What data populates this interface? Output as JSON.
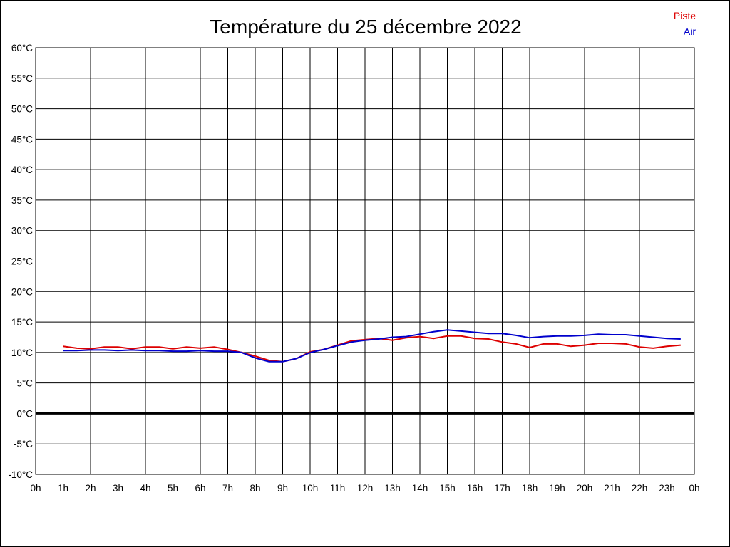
{
  "chart_data": {
    "type": "line",
    "title": "Température du 25 décembre 2022",
    "xlabel": "",
    "ylabel": "",
    "grid": true,
    "legend_position": "top-right",
    "xlim": [
      0,
      24
    ],
    "ylim": [
      -10,
      60
    ],
    "x_ticks": [
      0,
      1,
      2,
      3,
      4,
      5,
      6,
      7,
      8,
      9,
      10,
      11,
      12,
      13,
      14,
      15,
      16,
      17,
      18,
      19,
      20,
      21,
      22,
      23,
      24
    ],
    "x_tick_labels": [
      "0h",
      "1h",
      "2h",
      "3h",
      "4h",
      "5h",
      "6h",
      "7h",
      "8h",
      "9h",
      "10h",
      "11h",
      "12h",
      "13h",
      "14h",
      "15h",
      "16h",
      "17h",
      "18h",
      "19h",
      "20h",
      "21h",
      "22h",
      "23h",
      "0h"
    ],
    "y_ticks": [
      -10,
      -5,
      0,
      5,
      10,
      15,
      20,
      25,
      30,
      35,
      40,
      45,
      50,
      55,
      60
    ],
    "y_tick_labels": [
      "-10°C",
      "-5°C",
      "0°C",
      "5°C",
      "10°C",
      "15°C",
      "20°C",
      "25°C",
      "30°C",
      "35°C",
      "40°C",
      "45°C",
      "50°C",
      "55°C",
      "60°C"
    ],
    "x": [
      1,
      1.5,
      2,
      2.5,
      3,
      3.5,
      4,
      4.5,
      5,
      5.5,
      6,
      6.5,
      7,
      7.5,
      8,
      8.5,
      9,
      9.5,
      10,
      10.5,
      11,
      11.5,
      12,
      12.5,
      13,
      13.5,
      14,
      14.5,
      15,
      15.5,
      16,
      16.5,
      17,
      17.5,
      18,
      18.5,
      19,
      19.5,
      20,
      20.5,
      21,
      21.5,
      22,
      22.5,
      23,
      23.5
    ],
    "series": [
      {
        "name": "Piste",
        "color": "#dd0000",
        "values": [
          11.0,
          10.7,
          10.6,
          10.9,
          10.9,
          10.6,
          10.9,
          10.9,
          10.6,
          10.9,
          10.7,
          10.9,
          10.5,
          10.0,
          9.4,
          8.7,
          8.5,
          9.0,
          10.1,
          10.5,
          11.2,
          11.9,
          12.1,
          12.3,
          12.0,
          12.4,
          12.6,
          12.3,
          12.7,
          12.7,
          12.3,
          12.2,
          11.7,
          11.4,
          10.8,
          11.4,
          11.4,
          11.0,
          11.2,
          11.5,
          11.5,
          11.4,
          10.9,
          10.7,
          11.0,
          11.2
        ]
      },
      {
        "name": "Air",
        "color": "#0000cc",
        "values": [
          10.3,
          10.3,
          10.4,
          10.4,
          10.3,
          10.4,
          10.3,
          10.3,
          10.2,
          10.2,
          10.3,
          10.2,
          10.2,
          10.0,
          9.1,
          8.5,
          8.5,
          9.0,
          10.0,
          10.5,
          11.1,
          11.7,
          12.0,
          12.2,
          12.5,
          12.6,
          13.0,
          13.4,
          13.7,
          13.5,
          13.3,
          13.1,
          13.1,
          12.8,
          12.4,
          12.6,
          12.7,
          12.7,
          12.8,
          13.0,
          12.9,
          12.9,
          12.7,
          12.5,
          12.3,
          12.2
        ]
      }
    ]
  }
}
